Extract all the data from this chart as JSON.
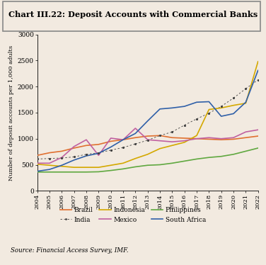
{
  "title": "Chart III.22: Deposit Accounts with Commercial Banks",
  "ylabel": "Number of deposit accounts per 1,000 adults",
  "source": "Source: Financial Access Survey, IMF.",
  "years": [
    2004,
    2005,
    2006,
    2007,
    2008,
    2009,
    2010,
    2011,
    2012,
    2013,
    2014,
    2015,
    2016,
    2017,
    2018,
    2019,
    2020,
    2021,
    2022
  ],
  "Brazil": [
    680,
    730,
    760,
    820,
    870,
    890,
    950,
    980,
    1020,
    1050,
    1060,
    1020,
    1010,
    1000,
    990,
    980,
    990,
    1020,
    1050
  ],
  "India": [
    610,
    620,
    630,
    650,
    700,
    730,
    780,
    830,
    900,
    970,
    1060,
    1130,
    1260,
    1380,
    1490,
    1620,
    1780,
    1960,
    2130
  ],
  "Indonesia": [
    510,
    490,
    470,
    450,
    450,
    450,
    490,
    530,
    620,
    700,
    810,
    870,
    930,
    1060,
    1560,
    1590,
    1640,
    1680,
    2480
  ],
  "Mexico": [
    530,
    530,
    640,
    850,
    980,
    680,
    1010,
    980,
    1200,
    980,
    960,
    940,
    960,
    1000,
    1020,
    1000,
    1020,
    1130,
    1170
  ],
  "Philippines": [
    360,
    360,
    360,
    360,
    360,
    365,
    390,
    420,
    460,
    490,
    500,
    530,
    570,
    610,
    640,
    660,
    700,
    760,
    820
  ],
  "South Africa": [
    375,
    410,
    490,
    590,
    670,
    720,
    840,
    980,
    1100,
    1340,
    1570,
    1590,
    1620,
    1700,
    1710,
    1430,
    1480,
    1700,
    2310
  ],
  "colors": {
    "Brazil": "#E07030",
    "India": "#404040",
    "Indonesia": "#D4A800",
    "Mexico": "#C060A0",
    "Philippines": "#60A840",
    "South Africa": "#3060A8"
  },
  "background_color": "#F2EAE0",
  "ylim": [
    0,
    3000
  ],
  "yticks": [
    0,
    500,
    1000,
    1500,
    2000,
    2500,
    3000
  ]
}
